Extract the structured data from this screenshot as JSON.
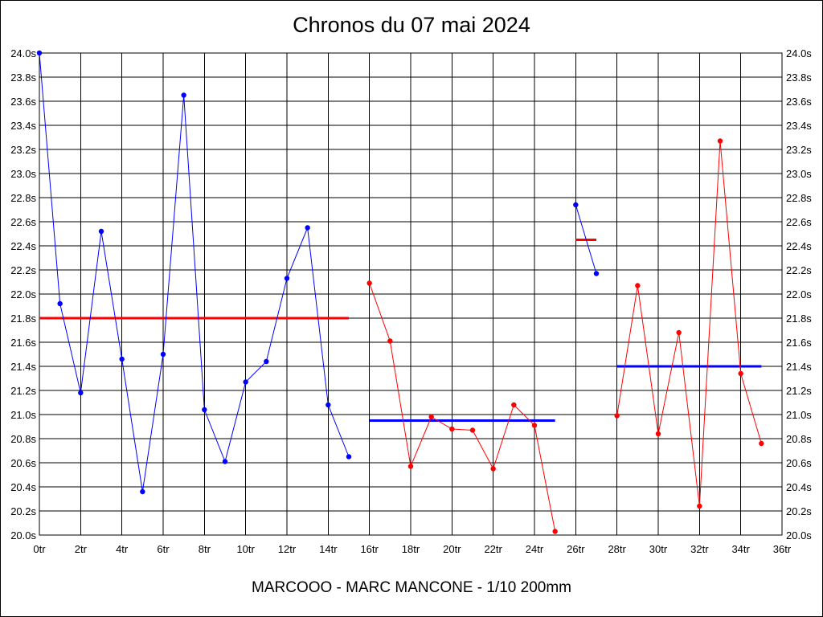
{
  "chart_data": {
    "type": "line",
    "title": "Chronos du 07 mai 2024",
    "subtitle": "MARCOOO - MARC MANCONE - 1/10 200mm",
    "xlabel": "",
    "ylabel": "",
    "xlim": [
      0,
      36
    ],
    "ylim": [
      20.0,
      24.0
    ],
    "grid": true,
    "x_ticks": [
      {
        "value": 0,
        "label": "0tr"
      },
      {
        "value": 2,
        "label": "2tr"
      },
      {
        "value": 4,
        "label": "4tr"
      },
      {
        "value": 6,
        "label": "6tr"
      },
      {
        "value": 8,
        "label": "8tr"
      },
      {
        "value": 10,
        "label": "10tr"
      },
      {
        "value": 12,
        "label": "12tr"
      },
      {
        "value": 14,
        "label": "14tr"
      },
      {
        "value": 16,
        "label": "16tr"
      },
      {
        "value": 18,
        "label": "18tr"
      },
      {
        "value": 20,
        "label": "20tr"
      },
      {
        "value": 22,
        "label": "22tr"
      },
      {
        "value": 24,
        "label": "24tr"
      },
      {
        "value": 26,
        "label": "26tr"
      },
      {
        "value": 28,
        "label": "28tr"
      },
      {
        "value": 30,
        "label": "30tr"
      },
      {
        "value": 32,
        "label": "32tr"
      },
      {
        "value": 34,
        "label": "34tr"
      },
      {
        "value": 36,
        "label": "36tr"
      }
    ],
    "y_ticks": [
      {
        "value": 24.0,
        "label": "24.0s"
      },
      {
        "value": 23.8,
        "label": "23.8s"
      },
      {
        "value": 23.6,
        "label": "23.6s"
      },
      {
        "value": 23.4,
        "label": "23.4s"
      },
      {
        "value": 23.2,
        "label": "23.2s"
      },
      {
        "value": 23.0,
        "label": "23.0s"
      },
      {
        "value": 22.8,
        "label": "22.8s"
      },
      {
        "value": 22.6,
        "label": "22.6s"
      },
      {
        "value": 22.4,
        "label": "22.4s"
      },
      {
        "value": 22.2,
        "label": "22.2s"
      },
      {
        "value": 22.0,
        "label": "22.0s"
      },
      {
        "value": 21.8,
        "label": "21.8s"
      },
      {
        "value": 21.6,
        "label": "21.6s"
      },
      {
        "value": 21.4,
        "label": "21.4s"
      },
      {
        "value": 21.2,
        "label": "21.2s"
      },
      {
        "value": 21.0,
        "label": "21.0s"
      },
      {
        "value": 20.8,
        "label": "20.8s"
      },
      {
        "value": 20.6,
        "label": "20.6s"
      },
      {
        "value": 20.4,
        "label": "20.4s"
      },
      {
        "value": 20.2,
        "label": "20.2s"
      },
      {
        "value": 20.0,
        "label": "20.0s"
      }
    ],
    "series": [
      {
        "color": "#0000ff",
        "x": [
          0,
          1,
          2,
          3,
          4,
          5,
          6,
          7,
          8,
          9,
          10,
          11,
          12,
          13,
          14,
          15
        ],
        "values": [
          24.0,
          21.92,
          21.18,
          22.52,
          21.46,
          20.36,
          21.5,
          23.65,
          21.04,
          20.61,
          21.27,
          21.44,
          22.13,
          22.55,
          21.08,
          20.65
        ]
      },
      {
        "color": "#ff0000",
        "x": [
          16,
          17,
          18,
          19,
          20,
          21,
          22,
          23,
          24,
          25
        ],
        "values": [
          22.09,
          21.61,
          20.57,
          20.98,
          20.88,
          20.87,
          20.55,
          21.08,
          20.91,
          20.03
        ]
      },
      {
        "color": "#0000ff",
        "x": [
          26,
          27
        ],
        "values": [
          22.74,
          22.17
        ]
      },
      {
        "color": "#ff0000",
        "x": [
          28,
          29,
          30,
          31,
          32,
          33,
          34,
          35
        ],
        "values": [
          20.99,
          22.07,
          20.84,
          21.68,
          20.24,
          23.27,
          21.34,
          20.76
        ]
      }
    ],
    "averages": [
      {
        "color": "#ff0000",
        "x_start": 0,
        "x_end": 15,
        "value": 21.8
      },
      {
        "color": "#0000ff",
        "x_start": 16,
        "x_end": 25,
        "value": 20.95
      },
      {
        "color": "#ff0000",
        "x_start": 26,
        "x_end": 27,
        "value": 22.45
      },
      {
        "color": "#0000ff",
        "x_start": 28,
        "x_end": 35,
        "value": 21.4
      }
    ]
  }
}
